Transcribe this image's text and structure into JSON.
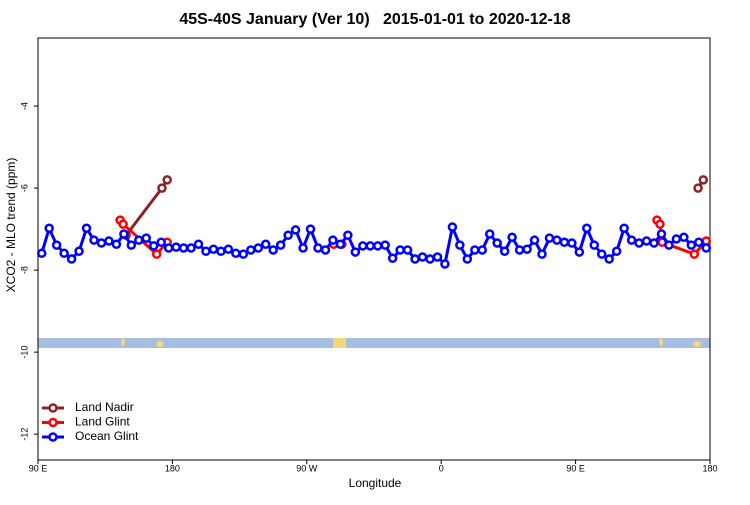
{
  "chart_data": {
    "type": "line",
    "title": "45S-40S January (Ver 10)   2015-01-01 to 2020-12-18",
    "xlabel": "Longitude",
    "ylabel": "XCO2 - MLO trend (ppm)",
    "xlim": [
      90,
      540
    ],
    "ylim": [
      -12.63,
      -2.34
    ],
    "xticks": [
      {
        "value": 90,
        "label": "90 E"
      },
      180,
      {
        "value": 270,
        "label": "90 W"
      },
      {
        "value": 360,
        "label": "0"
      },
      {
        "value": 450,
        "label": "90 E"
      },
      {
        "value": 540,
        "label": "180"
      }
    ],
    "yticks": [
      -4,
      -6,
      -8,
      -10,
      -12
    ],
    "legend": "bottom-left",
    "series": [
      {
        "name": "Land Nadir",
        "color": "#8b2323",
        "x": [
          149,
          173,
          176.5,
          350,
          532,
          535.5
        ],
        "values": [
          -7.15,
          -6.0,
          -5.8,
          null,
          -6.0,
          -5.8
        ]
      },
      {
        "name": "Land Glint",
        "color": "#ff0000",
        "x": [
          145,
          147,
          169.5,
          176.5,
          230,
          288,
          293.5,
          400,
          504.5,
          506.5,
          508,
          529.5,
          537.5
        ],
        "values": [
          -6.78,
          -6.88,
          -7.61,
          -7.32,
          null,
          -7.37,
          -7.37,
          null,
          -6.78,
          -6.88,
          -7.32,
          -7.61,
          -7.29
        ]
      },
      {
        "name": "Ocean Glint",
        "color": "#0000ff",
        "x": [
          92.5,
          97.5,
          102.5,
          107.5,
          112.5,
          117.5,
          122.5,
          127.5,
          132.5,
          137.5,
          142.5,
          147.5,
          152.5,
          157.5,
          162.5,
          167.5,
          172.5,
          177.5,
          182.5,
          187.5,
          192.5,
          197.5,
          202.5,
          207.5,
          212.5,
          217.5,
          222.5,
          227.5,
          232.5,
          237.5,
          242.5,
          247.5,
          252.5,
          257.5,
          262.5,
          267.5,
          272.5,
          277.5,
          282.5,
          287.5,
          292.5,
          297.5,
          302.5,
          307.5,
          312.5,
          317.5,
          322.5,
          327.5,
          332.5,
          337.5,
          342.5,
          347.5,
          352.5,
          357.5,
          362.5,
          367.5,
          372.5,
          377.5,
          382.5,
          387.5,
          392.5,
          397.5,
          402.5,
          407.5,
          412.5,
          417.5,
          422.5,
          427.5,
          432.5,
          437.5,
          442.5,
          447.5,
          452.5,
          457.5,
          462.5,
          467.5,
          472.5,
          477.5,
          482.5,
          487.5,
          492.5,
          497.5,
          502.5,
          507.5,
          512.5,
          517.5,
          522.5,
          527.5,
          532.5,
          537.5
        ],
        "values": [
          -7.59,
          -6.98,
          -7.39,
          -7.59,
          -7.73,
          -7.54,
          -6.98,
          -7.27,
          -7.34,
          -7.29,
          -7.37,
          -7.12,
          -7.39,
          -7.27,
          -7.22,
          -7.41,
          -7.32,
          -7.46,
          -7.44,
          -7.46,
          -7.46,
          -7.37,
          -7.54,
          -7.49,
          -7.54,
          -7.49,
          -7.59,
          -7.61,
          -7.51,
          -7.46,
          -7.37,
          -7.51,
          -7.39,
          -7.15,
          -7.02,
          -7.46,
          -7.0,
          -7.46,
          -7.51,
          -7.27,
          -7.37,
          -7.15,
          -7.56,
          -7.41,
          -7.41,
          -7.41,
          -7.39,
          -7.71,
          -7.51,
          -7.51,
          -7.73,
          -7.68,
          -7.73,
          -7.68,
          -7.85,
          -6.95,
          -7.39,
          -7.73,
          -7.51,
          -7.51,
          -7.12,
          -7.34,
          -7.54,
          -7.2,
          -7.51,
          -7.49,
          -7.27,
          -7.61,
          -7.22,
          -7.27,
          -7.32,
          -7.34,
          -7.56,
          -6.98,
          -7.39,
          -7.61,
          -7.73,
          -7.54,
          -6.98,
          -7.27,
          -7.34,
          -7.29,
          -7.34,
          -7.12,
          -7.39,
          -7.24,
          -7.2,
          -7.39,
          -7.32,
          -7.46
        ]
      }
    ]
  }
}
